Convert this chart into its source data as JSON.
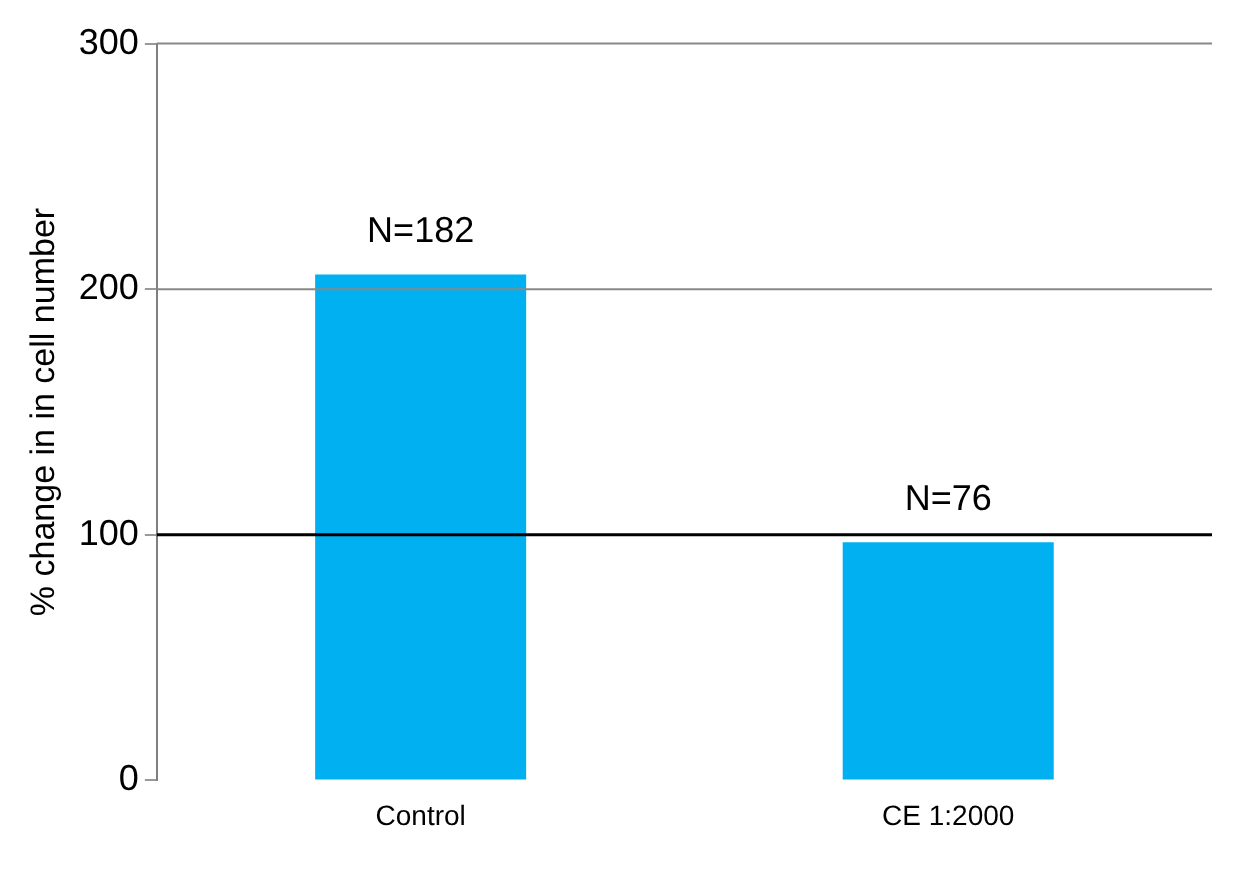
{
  "chart_data": {
    "type": "bar",
    "ylabel": "% change in in cell number",
    "categories": [
      "Control",
      "CE 1:2000"
    ],
    "values": [
      206,
      97
    ],
    "color": "#00b0f0",
    "ylim": [
      0,
      300
    ],
    "yticks": [
      0,
      100,
      200,
      300
    ],
    "ref_lines": [
      {
        "axis": "y",
        "value": 300,
        "color": "#888888"
      },
      {
        "axis": "y",
        "value": 200,
        "color": "#888888"
      },
      {
        "axis": "y",
        "value": 100,
        "color": "#000000"
      }
    ],
    "annotations": [
      {
        "text": "N=182",
        "x": "Control",
        "y": 206
      },
      {
        "text": "N=76",
        "x": "CE 1:2000",
        "y": 97
      }
    ]
  }
}
